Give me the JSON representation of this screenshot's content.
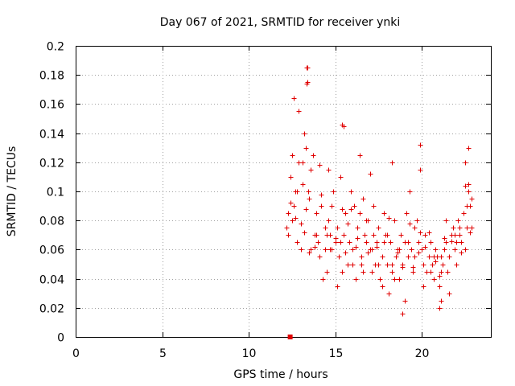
{
  "chart_data": {
    "type": "scatter",
    "title": "Day 067 of 2021, SRMTID for receiver ynki",
    "xlabel": "GPS time / hours",
    "ylabel": "SRMTID / TECUs",
    "xlim": [
      0,
      24
    ],
    "ylim": [
      0,
      0.2
    ],
    "xticks": [
      0,
      5,
      10,
      15,
      20
    ],
    "yticks": [
      0,
      0.02,
      0.04,
      0.06,
      0.08,
      0.1,
      0.12,
      0.14,
      0.16,
      0.18,
      0.2
    ],
    "xtick_labels": [
      "0",
      "5",
      "10",
      "15",
      "20"
    ],
    "ytick_labels": [
      "0",
      "0.02",
      "0.04",
      "0.06",
      "0.08",
      "0.1",
      "0.12",
      "0.14",
      "0.16",
      "0.18",
      "0.2"
    ],
    "grid": true,
    "color": "#e00000",
    "marker": "plus",
    "series": [
      {
        "name": "SRMTID",
        "x": [
          12.2,
          12.3,
          12.4,
          12.5,
          12.6,
          12.7,
          12.8,
          12.9,
          13.0,
          13.1,
          13.2,
          13.3,
          13.35,
          13.4,
          13.45,
          13.5,
          13.6,
          13.7,
          13.8,
          13.9,
          14.0,
          14.1,
          14.2,
          14.3,
          14.4,
          14.5,
          14.6,
          14.7,
          14.8,
          14.9,
          15.0,
          15.1,
          15.2,
          15.3,
          15.4,
          15.5,
          15.6,
          15.7,
          15.8,
          15.9,
          16.0,
          16.1,
          16.2,
          16.3,
          16.4,
          16.5,
          16.6,
          16.7,
          16.8,
          16.9,
          17.0,
          17.1,
          17.2,
          17.3,
          17.4,
          17.5,
          17.6,
          17.7,
          17.8,
          17.9,
          18.0,
          18.1,
          18.2,
          18.3,
          18.4,
          18.5,
          18.6,
          18.7,
          18.8,
          18.9,
          19.0,
          19.1,
          19.2,
          19.3,
          19.4,
          19.5,
          19.6,
          19.7,
          19.8,
          19.9,
          20.0,
          20.1,
          20.2,
          20.3,
          20.4,
          20.5,
          20.6,
          20.7,
          20.8,
          20.9,
          21.0,
          21.1,
          21.2,
          21.3,
          21.4,
          21.5,
          21.6,
          21.7,
          21.8,
          21.9,
          22.0,
          22.1,
          22.2,
          22.3,
          22.4,
          22.5,
          22.6,
          22.7,
          22.8,
          22.9,
          12.3,
          12.5,
          12.8,
          13.0,
          13.3,
          13.6,
          13.9,
          14.2,
          14.5,
          14.8,
          15.1,
          15.4,
          15.7,
          16.0,
          16.3,
          16.6,
          16.9,
          17.2,
          17.5,
          17.8,
          18.1,
          18.4,
          18.7,
          19.0,
          19.3,
          19.6,
          19.9,
          20.2,
          20.5,
          20.8,
          21.1,
          21.4,
          21.7,
          22.0,
          22.3,
          22.6,
          22.9,
          12.4,
          12.7,
          13.2,
          13.5,
          13.8,
          14.1,
          14.4,
          14.7,
          15.0,
          15.3,
          15.6,
          15.9,
          16.2,
          16.5,
          16.8,
          17.1,
          17.4,
          17.7,
          18.0,
          18.3,
          18.6,
          18.9,
          19.2,
          19.5,
          19.8,
          20.1,
          20.4,
          20.7,
          21.0,
          21.3,
          21.6,
          21.9,
          22.2,
          22.5,
          22.8,
          13.1,
          13.35,
          13.4,
          12.6,
          12.9,
          15.4,
          15.5,
          18.9,
          19.9,
          22.7,
          22.5,
          22.7,
          21.0,
          21.1,
          18.3,
          14.6,
          16.4,
          17.0
        ],
        "y": [
          0.075,
          0.085,
          0.11,
          0.125,
          0.09,
          0.1,
          0.065,
          0.12,
          0.078,
          0.105,
          0.14,
          0.13,
          0.185,
          0.175,
          0.1,
          0.095,
          0.06,
          0.125,
          0.07,
          0.085,
          0.065,
          0.055,
          0.09,
          0.04,
          0.075,
          0.045,
          0.08,
          0.06,
          0.09,
          0.1,
          0.065,
          0.075,
          0.055,
          0.11,
          0.045,
          0.07,
          0.085,
          0.05,
          0.065,
          0.1,
          0.06,
          0.09,
          0.04,
          0.075,
          0.085,
          0.055,
          0.045,
          0.07,
          0.065,
          0.08,
          0.06,
          0.045,
          0.09,
          0.05,
          0.065,
          0.075,
          0.04,
          0.055,
          0.085,
          0.07,
          0.05,
          0.03,
          0.065,
          0.045,
          0.08,
          0.055,
          0.06,
          0.04,
          0.07,
          0.05,
          0.065,
          0.085,
          0.055,
          0.1,
          0.06,
          0.045,
          0.075,
          0.08,
          0.065,
          0.115,
          0.06,
          0.05,
          0.07,
          0.045,
          0.055,
          0.065,
          0.05,
          0.04,
          0.06,
          0.055,
          0.035,
          0.045,
          0.05,
          0.06,
          0.065,
          0.045,
          0.055,
          0.07,
          0.075,
          0.06,
          0.065,
          0.08,
          0.07,
          0.065,
          0.085,
          0.06,
          0.075,
          0.1,
          0.09,
          0.075,
          0.07,
          0.08,
          0.1,
          0.06,
          0.088,
          0.115,
          0.07,
          0.098,
          0.07,
          0.06,
          0.035,
          0.088,
          0.078,
          0.05,
          0.068,
          0.095,
          0.058,
          0.07,
          0.05,
          0.065,
          0.082,
          0.04,
          0.06,
          0.025,
          0.078,
          0.055,
          0.072,
          0.062,
          0.045,
          0.052,
          0.055,
          0.08,
          0.066,
          0.05,
          0.058,
          0.09,
          0.095,
          0.092,
          0.082,
          0.072,
          0.058,
          0.062,
          0.118,
          0.06,
          0.07,
          0.068,
          0.065,
          0.058,
          0.088,
          0.062,
          0.05,
          0.08,
          0.06,
          0.062,
          0.035,
          0.07,
          0.05,
          0.058,
          0.048,
          0.065,
          0.048,
          0.058,
          0.035,
          0.072,
          0.055,
          0.042,
          0.068,
          0.03,
          0.07,
          0.075,
          0.104,
          0.072,
          0.12,
          0.174,
          0.185,
          0.164,
          0.155,
          0.146,
          0.145,
          0.016,
          0.132,
          0.13,
          0.12,
          0.105,
          0.02,
          0.025,
          0.12,
          0.115,
          0.125,
          0.112
        ]
      },
      {
        "name": "marker",
        "x": [
          12.4
        ],
        "y": [
          0.0
        ]
      }
    ]
  }
}
